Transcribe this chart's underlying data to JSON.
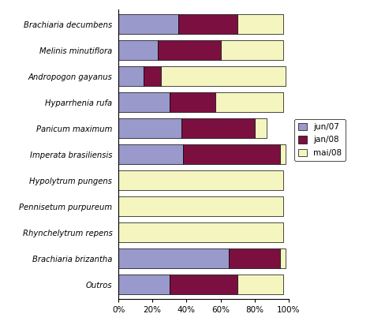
{
  "species": [
    "Brachiaria decumbens",
    "Melinis minutiflora",
    "Andropogon gayanus",
    "Hyparrhenia rufa",
    "Panicum maximum",
    "Imperata brasiliensis",
    "Hypolytrum pungens",
    "Pennisetum purpureum",
    "Rhynchelytrum repens",
    "Brachiaria brizantha",
    "Outros"
  ],
  "jun07": [
    35,
    23,
    15,
    30,
    37,
    38,
    0,
    0,
    0,
    65,
    30
  ],
  "jan08": [
    35,
    37,
    10,
    27,
    43,
    57,
    0,
    0,
    0,
    30,
    40
  ],
  "mai08": [
    27,
    37,
    73,
    40,
    7,
    3,
    97,
    97,
    97,
    3,
    27
  ],
  "color_jun07": "#9999cc",
  "color_jan08": "#7b1040",
  "color_mai08": "#f5f5c0",
  "legend_labels": [
    "jun/07",
    "jan/08",
    "mai/08"
  ],
  "xtick_labels": [
    "0%",
    "20%",
    "40%",
    "60%",
    "80%",
    "100%"
  ],
  "figsize": [
    4.69,
    4.12
  ],
  "dpi": 100,
  "bar_height": 0.75
}
